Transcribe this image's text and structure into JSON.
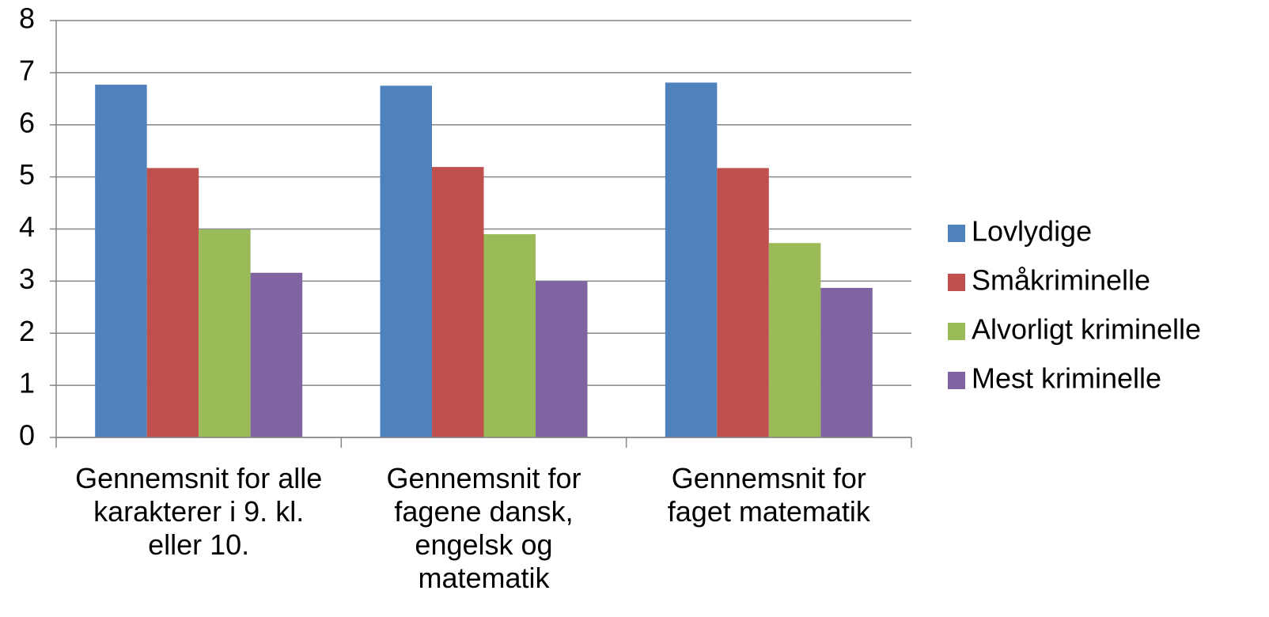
{
  "chart_data": {
    "type": "bar",
    "categories": [
      "Gennemsnit for alle karakterer i 9. kl. eller 10.",
      "Gennemsnit for fagene dansk, engelsk og matematik",
      "Gennemsnit for faget matematik"
    ],
    "series": [
      {
        "name": "Lovlydige",
        "color": "#4f81bd",
        "values": [
          6.77,
          6.75,
          6.81
        ]
      },
      {
        "name": "Småkriminelle",
        "color": "#c0504d",
        "values": [
          5.17,
          5.19,
          5.17
        ]
      },
      {
        "name": "Alvorligt kriminelle",
        "color": "#9bbb59",
        "values": [
          3.99,
          3.9,
          3.73
        ]
      },
      {
        "name": "Mest kriminelle",
        "color": "#8064a2",
        "values": [
          3.16,
          3.0,
          2.87
        ]
      }
    ],
    "ylim": [
      0,
      8
    ],
    "yticks": [
      0,
      1,
      2,
      3,
      4,
      5,
      6,
      7,
      8
    ],
    "grid": true,
    "legend": "right"
  }
}
